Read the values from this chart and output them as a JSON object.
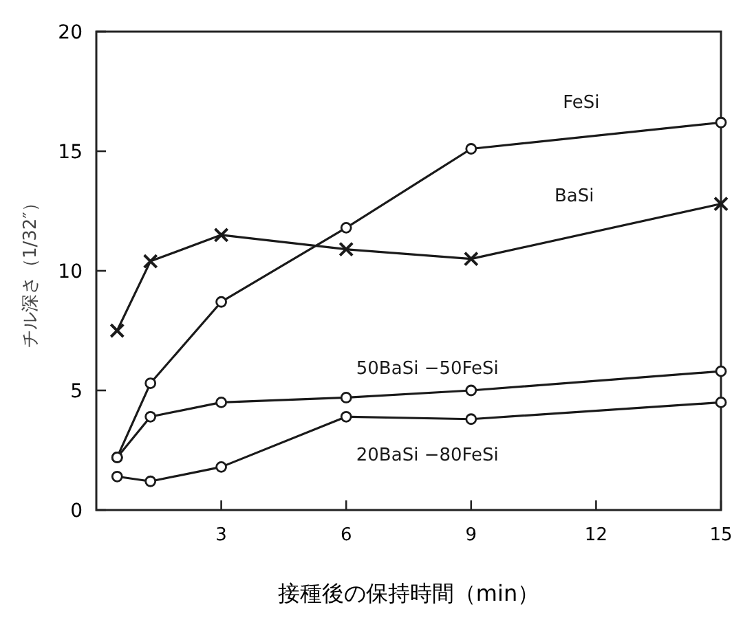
{
  "chart_data": {
    "type": "line",
    "xlabel": "接種後の保持時間（min）",
    "ylabel": "チル深さ（1/32″）",
    "xlim": [
      0,
      15
    ],
    "ylim": [
      0,
      20
    ],
    "xticks": [
      3,
      6,
      9,
      12,
      15
    ],
    "yticks": [
      0,
      5,
      10,
      15,
      20
    ],
    "grid": false,
    "line_style": "solid",
    "x": [
      0.5,
      1.3,
      3,
      6,
      9,
      15
    ],
    "series": [
      {
        "name": "FeSi",
        "color": "#1a1a1a",
        "marker": "circle",
        "values": [
          2.2,
          5.3,
          8.7,
          11.8,
          15.1,
          16.2
        ]
      },
      {
        "name": "BaSi",
        "color": "#1a1a1a",
        "marker": "cross",
        "values": [
          7.5,
          10.4,
          11.5,
          10.9,
          10.5,
          12.8
        ]
      },
      {
        "name": "50BaSi −50FeSi",
        "color": "#1a1a1a",
        "marker": "circle",
        "values": [
          2.2,
          3.9,
          4.5,
          4.7,
          5.0,
          5.8
        ]
      },
      {
        "name": "20BaSi −80FeSi",
        "color": "#1a1a1a",
        "marker": "circle",
        "values": [
          1.4,
          1.2,
          1.8,
          3.9,
          3.8,
          4.5
        ]
      }
    ]
  }
}
